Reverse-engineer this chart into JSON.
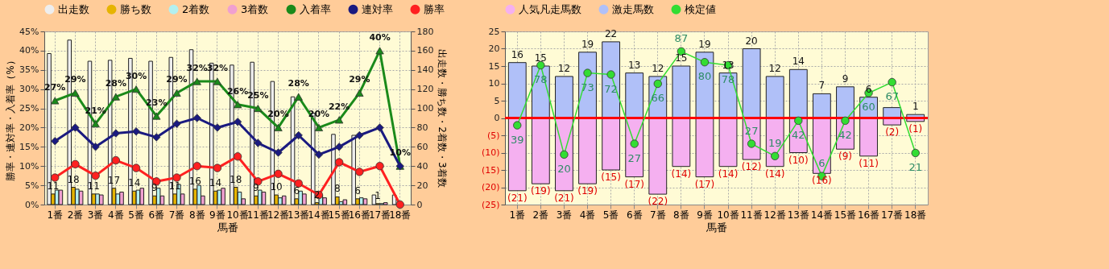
{
  "chart_data": [
    {
      "type": "bar",
      "categories": [
        "1番",
        "2番",
        "3番",
        "4番",
        "5番",
        "6番",
        "7番",
        "8番",
        "9番",
        "10番",
        "11番",
        "12番",
        "13番",
        "14番",
        "15番",
        "16番",
        "17番",
        "18番"
      ],
      "xlabel": "馬番",
      "ylabel": "勝率・連対率・入着率（%）",
      "y2label": "出走数・勝ち数・2着数・3着数",
      "ylim": [
        0,
        45
      ],
      "yticks": [
        {
          "value": 0,
          "label": "0%"
        },
        {
          "value": 5,
          "label": "5%"
        },
        {
          "value": 10,
          "label": "10%"
        },
        {
          "value": 15,
          "label": "15%"
        },
        {
          "value": 20,
          "label": "20%"
        },
        {
          "value": 25,
          "label": "25%"
        },
        {
          "value": 30,
          "label": "30%"
        },
        {
          "value": 35,
          "label": "35%"
        },
        {
          "value": 40,
          "label": "40%"
        },
        {
          "value": 45,
          "label": "45%"
        }
      ],
      "y2lim": [
        0,
        180
      ],
      "y2ticks": [
        0,
        20,
        40,
        60,
        80,
        100,
        120,
        140,
        160,
        180
      ],
      "grid": true,
      "legend": "top",
      "series": [
        {
          "name": "出走数",
          "axis": "y2",
          "color": "#eeeeee",
          "values": [
            157,
            171,
            149,
            150,
            152,
            149,
            153,
            161,
            147,
            145,
            148,
            128,
            112,
            95,
            73,
            72,
            10,
            10
          ]
        },
        {
          "name": "勝ち数",
          "axis": "y2",
          "color": "#e6b400",
          "values": [
            11,
            18,
            11,
            17,
            14,
            9,
            11,
            16,
            14,
            18,
            9,
            10,
            6,
            2,
            8,
            6,
            1,
            0
          ],
          "value_labels": [
            "11",
            "18",
            "11",
            "17",
            "14",
            "9",
            "11",
            "16",
            "14",
            "18",
            "9",
            "10",
            "6",
            "2",
            "8",
            "6",
            "1",
            null
          ]
        },
        {
          "name": "2着数",
          "axis": "y2",
          "color": "#b3f0f0",
          "values": [
            15,
            16,
            11,
            11,
            15,
            17,
            21,
            20,
            15,
            13,
            15,
            7,
            14,
            10,
            3,
            7,
            1,
            null
          ]
        },
        {
          "name": "3着数",
          "axis": "y2",
          "color": "#f0a0d0",
          "values": [
            15,
            14,
            10,
            13,
            17,
            9,
            11,
            9,
            17,
            6,
            13,
            9,
            11,
            7,
            5,
            6,
            2,
            0
          ]
        },
        {
          "name": "入着率",
          "type": "line",
          "color": "#1a8a1a",
          "marker": "triangle",
          "values": [
            27,
            29,
            21,
            28,
            30,
            23,
            29,
            32,
            32,
            26,
            25,
            20,
            28,
            20,
            22,
            29,
            40,
            10
          ],
          "value_labels": [
            "27%",
            "29%",
            "21%",
            "28%",
            "30%",
            "23%",
            "29%",
            "32%",
            "32%",
            "26%",
            "25%",
            "20%",
            "28%",
            "20%",
            "22%",
            "29%",
            "40%",
            "10%"
          ]
        },
        {
          "name": "連対率",
          "type": "line",
          "color": "#1a1a80",
          "marker": "diamond",
          "values": [
            16.5,
            20,
            15,
            18.5,
            19,
            17.5,
            21,
            22.5,
            20,
            21.5,
            16,
            13.5,
            18,
            13,
            15,
            18,
            20,
            10
          ]
        },
        {
          "name": "勝率",
          "type": "line",
          "color": "#ff2020",
          "marker": "circle",
          "values": [
            7,
            10.5,
            7.5,
            11.5,
            9.5,
            6,
            7,
            10,
            9.5,
            12.5,
            6,
            8,
            5.5,
            2.5,
            11,
            8.5,
            10,
            0
          ]
        }
      ]
    },
    {
      "type": "bar",
      "stacked": true,
      "categories": [
        "1番",
        "2番",
        "3番",
        "4番",
        "5番",
        "6番",
        "7番",
        "8番",
        "9番",
        "10番",
        "11番",
        "12番",
        "13番",
        "14番",
        "15番",
        "16番",
        "17番",
        "18番"
      ],
      "xlabel": "馬番",
      "ylim": [
        -25,
        25
      ],
      "yticks": [
        {
          "value": -25,
          "label": "(25)"
        },
        {
          "value": -20,
          "label": "(20)"
        },
        {
          "value": -15,
          "label": "(15)"
        },
        {
          "value": -10,
          "label": "(10)"
        },
        {
          "value": -5,
          "label": "(5)"
        },
        0,
        5,
        10,
        15,
        20,
        25
      ],
      "y2lim": [
        -12.5,
        100
      ],
      "grid": true,
      "legend": "top",
      "ref_lines": [
        {
          "axis": "y",
          "value": 0,
          "color": "#ff0000"
        }
      ],
      "series": [
        {
          "name": "人気凡走馬数",
          "color": "#f5b0f0",
          "values": [
            -21,
            -19,
            -21,
            -19,
            -15,
            -17,
            -22,
            -14,
            -17,
            -14,
            -12,
            -14,
            -10,
            -16,
            -9,
            -11,
            -2,
            -1
          ],
          "value_labels": [
            "(21)",
            "(19)",
            "(21)",
            "(19)",
            "(15)",
            "(17)",
            "(22)",
            "(14)",
            "(17)",
            "(14)",
            "(12)",
            "(14)",
            "(10)",
            "(16)",
            "(9)",
            "(11)",
            "(2)",
            "(1)"
          ]
        },
        {
          "name": "激走馬数",
          "color": "#b0c0f8",
          "values": [
            16,
            15,
            12,
            19,
            22,
            13,
            12,
            15,
            19,
            13,
            20,
            12,
            14,
            7,
            9,
            6,
            3,
            1
          ],
          "value_labels": [
            "16",
            "15",
            "12",
            "19",
            "22",
            "13",
            "12",
            "15",
            "19",
            "13",
            "20",
            "12",
            "14",
            "7",
            "9",
            "6",
            null,
            "1"
          ]
        },
        {
          "name": "検定値",
          "type": "line",
          "axis": "y2",
          "color": "#33dd33",
          "marker": "circle",
          "values": [
            39,
            78,
            20,
            73,
            72,
            27,
            66,
            87,
            80,
            78,
            27,
            19,
            42,
            6,
            42,
            60,
            67,
            21
          ],
          "value_labels": [
            "39",
            "78",
            "20",
            "73",
            "72",
            "27",
            "66",
            "87",
            "80",
            "78",
            "27",
            "19",
            "42",
            "6",
            "42",
            "60",
            "67",
            "21"
          ]
        }
      ]
    }
  ]
}
